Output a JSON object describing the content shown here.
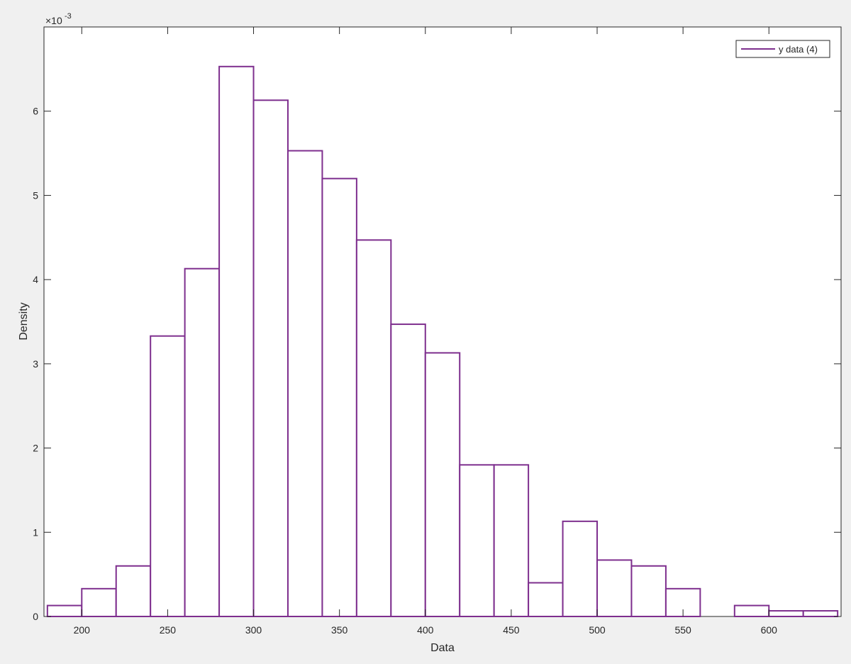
{
  "chart_data": {
    "type": "bar",
    "histogram": true,
    "bin_edges": [
      180,
      200,
      220,
      240,
      260,
      280,
      300,
      320,
      340,
      360,
      380,
      400,
      420,
      440,
      460,
      480,
      500,
      520,
      540,
      560,
      580,
      600,
      620,
      640
    ],
    "series": [
      {
        "name": "y data (4)",
        "color": "#7E2F8E",
        "values": [
          0.13,
          0.33,
          0.6,
          3.33,
          4.13,
          6.53,
          6.13,
          5.53,
          5.2,
          4.47,
          3.47,
          3.13,
          1.8,
          1.8,
          0.4,
          1.13,
          0.67,
          0.6,
          0.33,
          0.0,
          0.13,
          0.067,
          0.067
        ]
      }
    ],
    "value_scale_label": "×10^-3",
    "xlabel": "Data",
    "ylabel": "Density",
    "xlim": [
      178,
      642
    ],
    "ylim": [
      0,
      7
    ],
    "xticks": [
      200,
      250,
      300,
      350,
      400,
      450,
      500,
      550,
      600
    ],
    "yticks": [
      0,
      1,
      2,
      3,
      4,
      5,
      6
    ],
    "legend_position": "top-right",
    "grid": false
  }
}
